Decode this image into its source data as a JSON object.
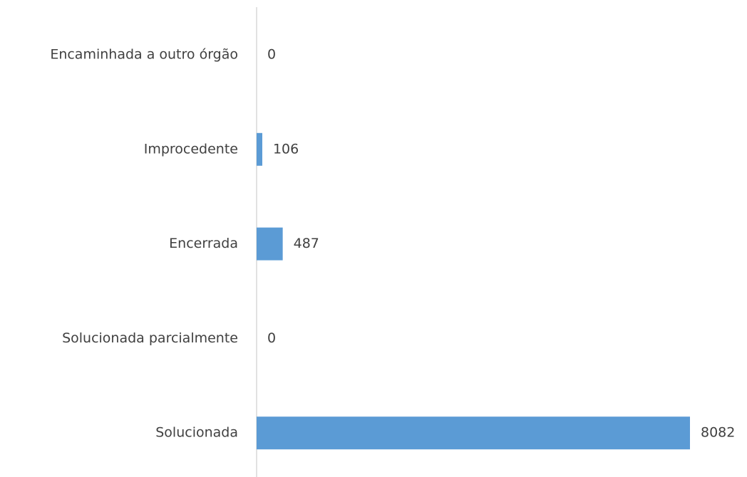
{
  "chart_data": {
    "type": "barh",
    "categories": [
      "Encaminhada a outro órgão",
      "Improcedente",
      "Encerrada",
      "Solucionada parcialmente",
      "Solucionada"
    ],
    "values": [
      0,
      106,
      487,
      0,
      8082
    ],
    "color": "#5b9bd5"
  }
}
